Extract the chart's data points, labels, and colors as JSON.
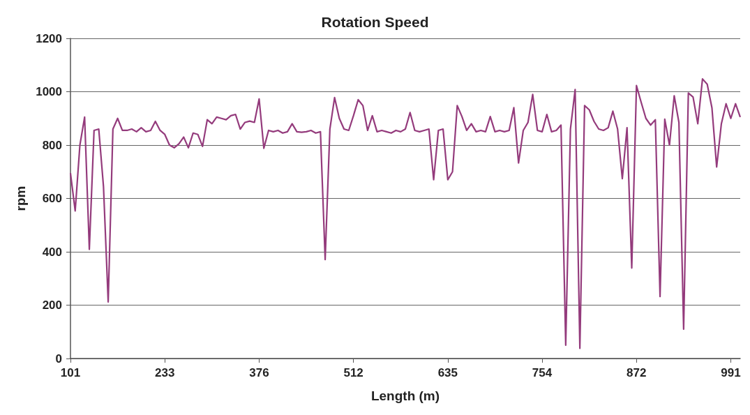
{
  "chart_data": {
    "type": "line",
    "title": "Rotation Speed",
    "xlabel": "Length (m)",
    "ylabel": "rpm",
    "categories": [
      "101",
      null,
      null,
      null,
      null,
      null,
      null,
      null,
      null,
      null,
      null,
      null,
      null,
      null,
      null,
      null,
      null,
      null,
      null,
      null,
      "233",
      null,
      null,
      null,
      null,
      null,
      null,
      null,
      null,
      null,
      null,
      null,
      null,
      null,
      null,
      null,
      null,
      null,
      null,
      null,
      "376",
      null,
      null,
      null,
      null,
      null,
      null,
      null,
      null,
      null,
      null,
      null,
      null,
      null,
      null,
      null,
      null,
      null,
      null,
      null,
      "512",
      null,
      null,
      null,
      null,
      null,
      null,
      null,
      null,
      null,
      null,
      null,
      null,
      null,
      null,
      null,
      null,
      null,
      null,
      null,
      "635",
      null,
      null,
      null,
      null,
      null,
      null,
      null,
      null,
      null,
      null,
      null,
      null,
      null,
      null,
      null,
      null,
      null,
      null,
      null,
      "754",
      null,
      null,
      null,
      null,
      null,
      null,
      null,
      null,
      null,
      null,
      null,
      null,
      null,
      null,
      null,
      null,
      null,
      null,
      null,
      "872",
      null,
      null,
      null,
      null,
      null,
      null,
      null,
      null,
      null,
      null,
      null,
      null,
      null,
      null,
      null,
      null,
      null,
      null,
      null,
      "991",
      null,
      null
    ],
    "series": [
      {
        "color": "#943b7c",
        "values": [
          695,
          553,
          800,
          905,
          409,
          855,
          860,
          645,
          212,
          860,
          900,
          855,
          855,
          860,
          850,
          865,
          850,
          855,
          889,
          855,
          840,
          800,
          790,
          805,
          830,
          790,
          845,
          840,
          795,
          895,
          880,
          905,
          900,
          895,
          910,
          915,
          860,
          885,
          890,
          885,
          973,
          788,
          855,
          850,
          855,
          845,
          850,
          880,
          850,
          848,
          850,
          855,
          845,
          850,
          371,
          860,
          978,
          900,
          860,
          855,
          910,
          970,
          948,
          855,
          910,
          850,
          855,
          850,
          845,
          855,
          850,
          860,
          922,
          855,
          850,
          855,
          860,
          670,
          855,
          860,
          670,
          700,
          948,
          907,
          855,
          880,
          850,
          855,
          850,
          907,
          850,
          855,
          850,
          855,
          940,
          733,
          855,
          885,
          990,
          855,
          850,
          915,
          850,
          855,
          875,
          50,
          860,
          1008,
          38,
          948,
          932,
          889,
          860,
          855,
          865,
          927,
          860,
          674,
          865,
          339,
          1023,
          960,
          900,
          875,
          895,
          232,
          897,
          800,
          985,
          885,
          110,
          995,
          980,
          880,
          1048,
          1028,
          940,
          718,
          880,
          955,
          900,
          955,
          905
        ]
      }
    ],
    "ylim": [
      0,
      1200
    ],
    "yticks": [
      0,
      200,
      400,
      600,
      800,
      1000,
      1200
    ],
    "grid": "y",
    "marker": "none",
    "line_style": "solid"
  }
}
